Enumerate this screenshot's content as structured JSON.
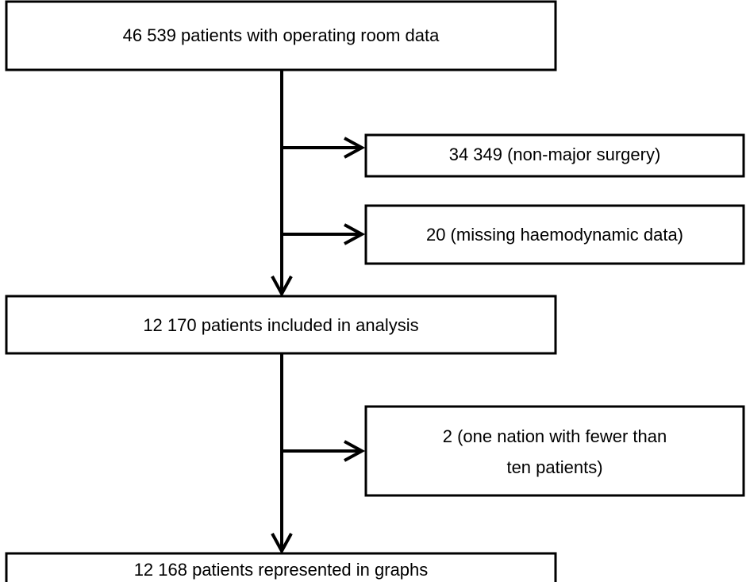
{
  "nodes": [
    {
      "label": "46 539 patients with operating room data"
    },
    {
      "label": "34 349 (non-major surgery)"
    },
    {
      "label": "20 (missing haemodynamic data)"
    },
    {
      "label": "12 170 patients included in analysis"
    },
    {
      "lines": [
        "2 (one nation with fewer than",
        "ten patients)"
      ]
    },
    {
      "label": "12 168 patients represented in graphs"
    }
  ]
}
